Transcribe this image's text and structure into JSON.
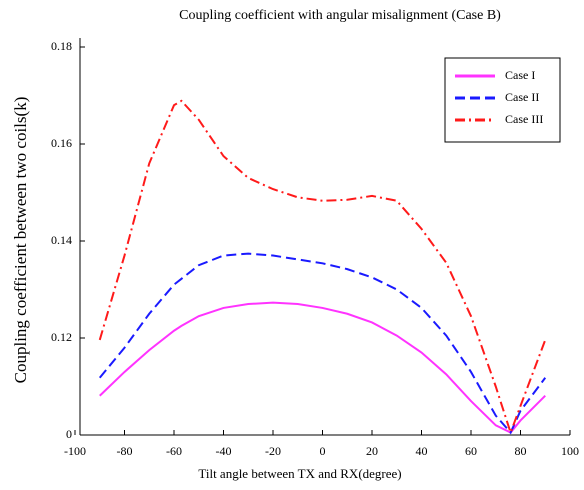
{
  "chart_data": {
    "type": "line",
    "title": "Coupling coefficient with angular misalignment (Case B)",
    "x_label": "Tilt angle between TX and RX(degree)",
    "y_label": "Coupling coefficient between two coils(k)",
    "x": [
      -90,
      -80,
      -70,
      -60,
      -57,
      -50,
      -40,
      -30,
      -20,
      -10,
      0,
      10,
      20,
      30,
      40,
      50,
      60,
      70,
      76,
      80,
      90
    ],
    "series": [
      {
        "name": "Case I",
        "color": "#ff33ff",
        "linestyle": "solid",
        "values": [
          0.1081,
          0.113,
          0.1175,
          0.1215,
          0.1225,
          0.1245,
          0.1262,
          0.127,
          0.1273,
          0.127,
          0.1262,
          0.125,
          0.1232,
          0.1205,
          0.117,
          0.1125,
          0.107,
          0.102,
          0.1005,
          0.103,
          0.1081
        ]
      },
      {
        "name": "Case II",
        "color": "#1a1aff",
        "linestyle": "dashed",
        "values": [
          0.1118,
          0.118,
          0.125,
          0.131,
          0.1322,
          0.135,
          0.137,
          0.1374,
          0.137,
          0.1362,
          0.1354,
          0.1342,
          0.1325,
          0.13,
          0.1262,
          0.1205,
          0.113,
          0.104,
          0.1005,
          0.105,
          0.1118
        ]
      },
      {
        "name": "Case III",
        "color": "#ff1a1a",
        "linestyle": "dashdot",
        "values": [
          0.1196,
          0.137,
          0.156,
          0.168,
          0.1689,
          0.165,
          0.1575,
          0.153,
          0.1507,
          0.149,
          0.1483,
          0.1485,
          0.1493,
          0.1483,
          0.1425,
          0.1355,
          0.1245,
          0.11,
          0.1005,
          0.106,
          0.1196
        ]
      }
    ],
    "xlim": [
      -100,
      100
    ],
    "xticks": [
      -100,
      -80,
      -60,
      -40,
      -20,
      0,
      20,
      40,
      60,
      80,
      100
    ],
    "ylim": [
      0.1,
      0.18
    ],
    "yticks": [
      {
        "value": 0.1,
        "label": "0"
      },
      0.12,
      0.14,
      0.16,
      0.18
    ],
    "grid": false,
    "legend": "upper right"
  }
}
